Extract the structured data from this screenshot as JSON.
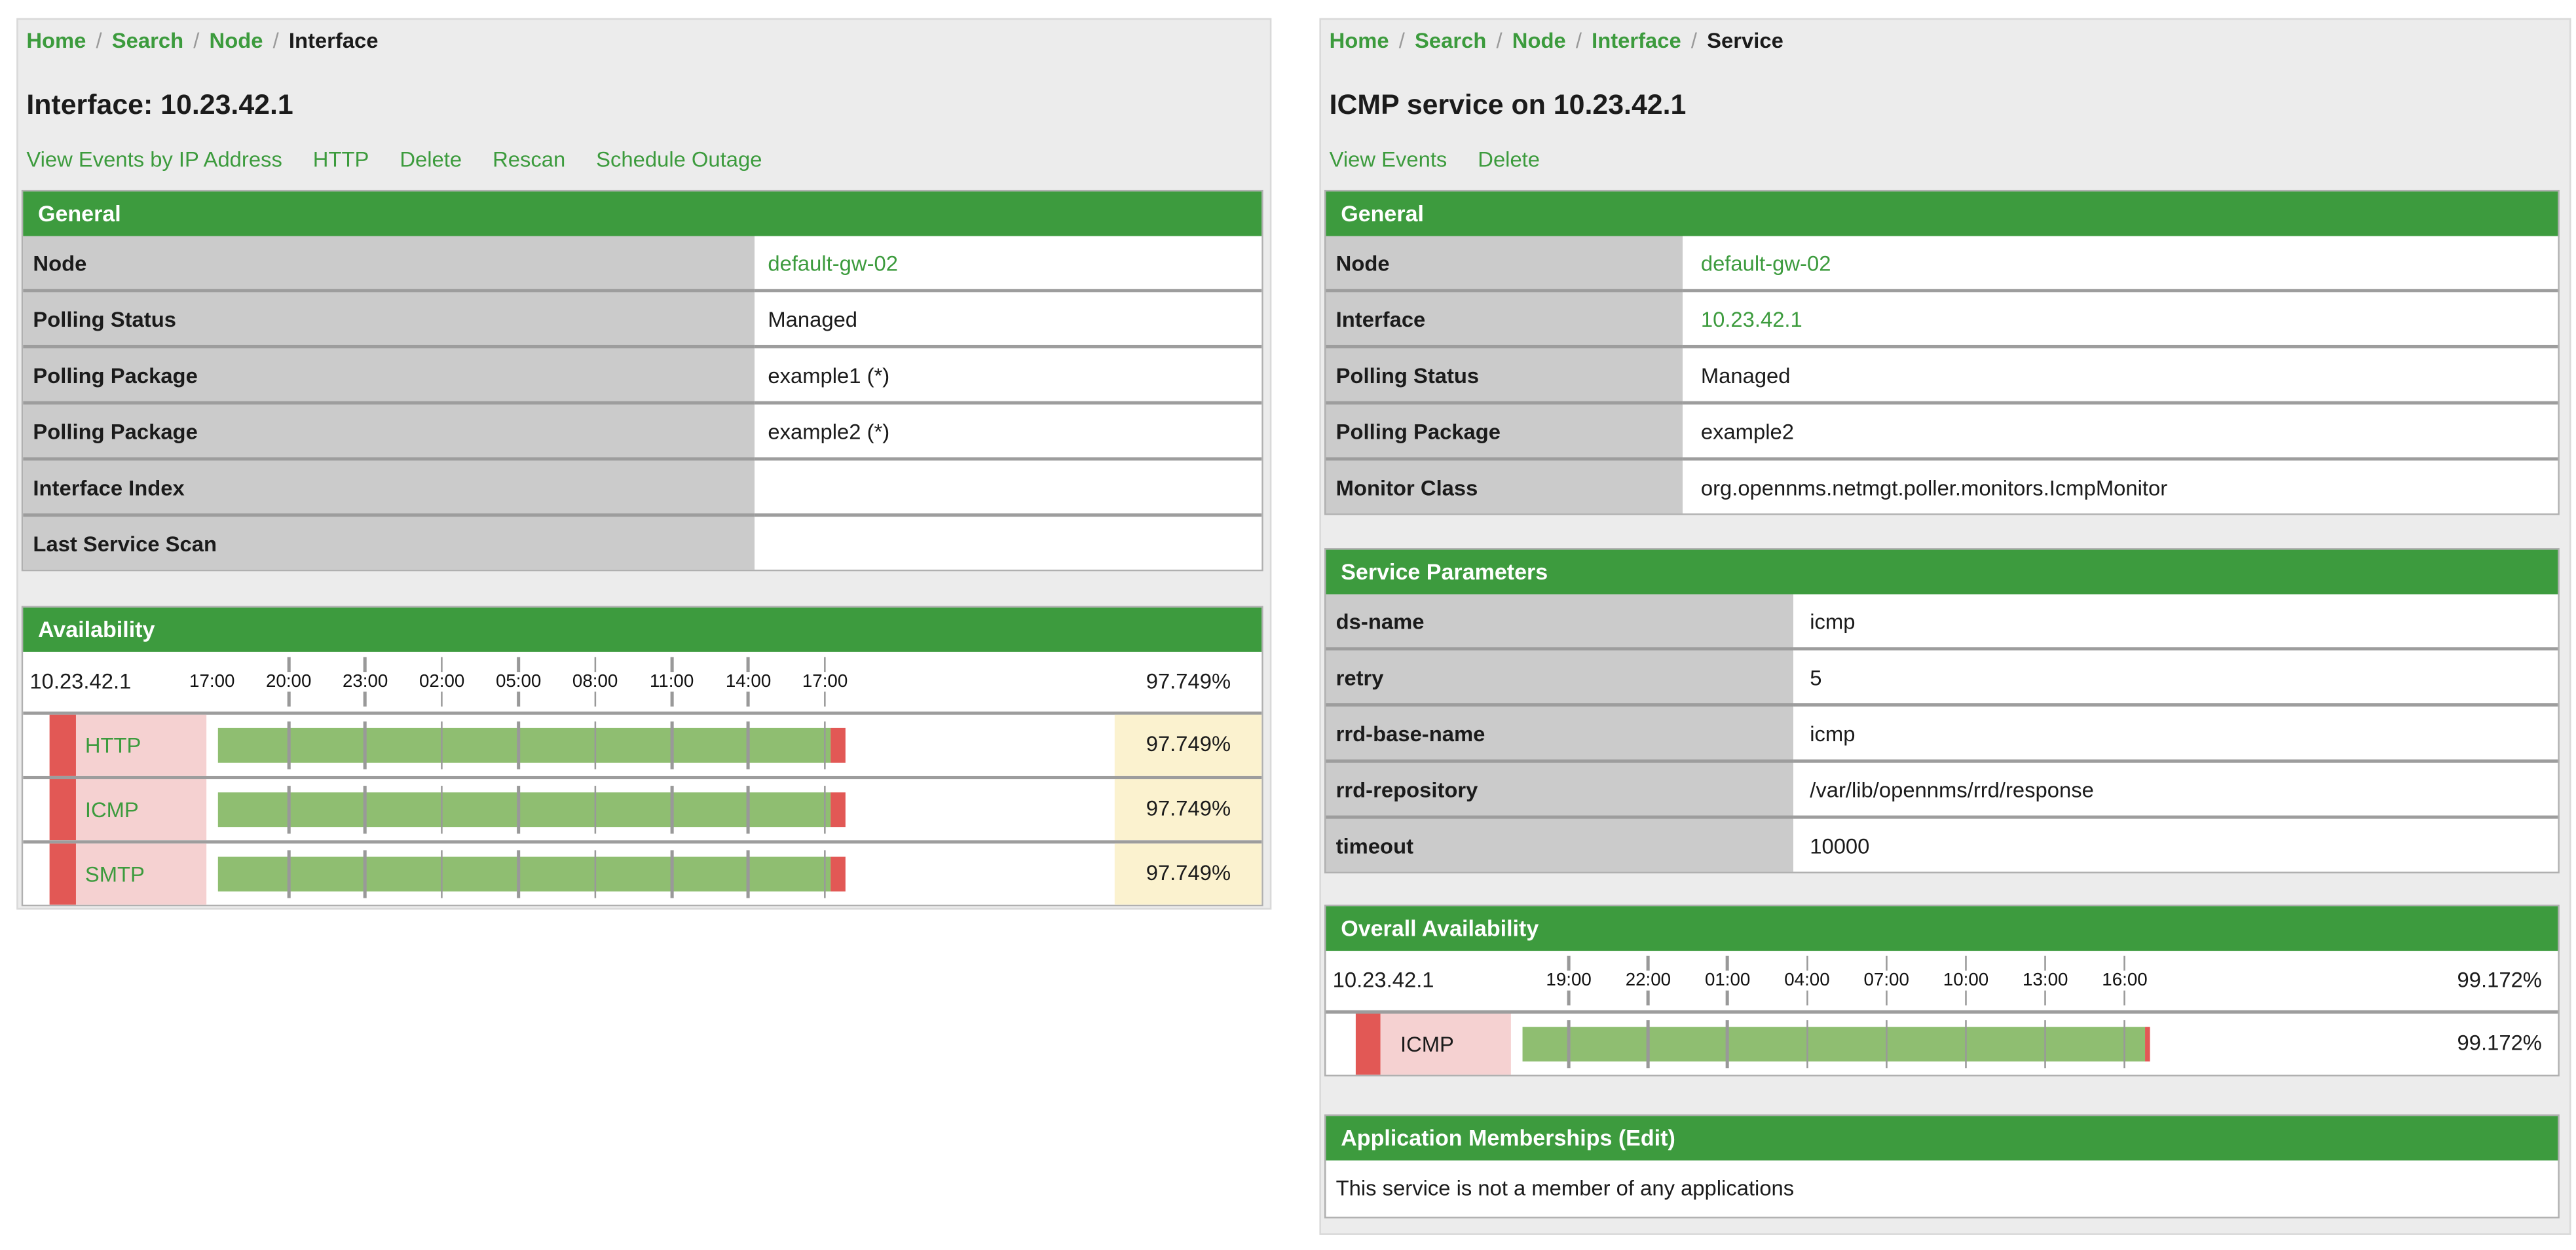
{
  "colors": {
    "header_green": "#3d9b3e",
    "link_green": "#3c9b3d",
    "label_gray": "#cbcbcb",
    "bar_green": "#8fbe71",
    "bar_red": "#e25855",
    "label_pink": "#f5d1d1",
    "value_yellow": "#fbf2cf",
    "tick_gray": "#999999",
    "card_gray": "#ececec"
  },
  "breadcrumb_sep": "/",
  "left_panel": {
    "breadcrumb": [
      "Home",
      "Search",
      "Node",
      "Interface"
    ],
    "title": "Interface: 10.23.42.1",
    "actions": [
      "View Events by IP Address",
      "HTTP",
      "Delete",
      "Rescan",
      "Schedule Outage"
    ],
    "general": {
      "header": "General",
      "rows": [
        {
          "label": "Node",
          "value": "default-gw-02"
        },
        {
          "label": "Polling Status",
          "value": "Managed"
        },
        {
          "label": "Polling Package",
          "value": "example1 (*)"
        },
        {
          "label": "Polling Package",
          "value": "example2 (*)"
        },
        {
          "label": "Interface Index",
          "value": ""
        },
        {
          "label": "Last Service Scan",
          "value": ""
        }
      ]
    },
    "availability": {
      "header": "Availability",
      "ip": "10.23.42.1",
      "overall": "97.749%",
      "axis_labels": [
        "17:00",
        "20:00",
        "23:00",
        "02:00",
        "05:00",
        "08:00",
        "11:00",
        "14:00",
        "17:00"
      ],
      "services": [
        {
          "name": "HTTP",
          "value": "97.749%",
          "pct": 97.749
        },
        {
          "name": "ICMP",
          "value": "97.749%",
          "pct": 97.749
        },
        {
          "name": "SMTP",
          "value": "97.749%",
          "pct": 97.749
        }
      ]
    }
  },
  "right_panel": {
    "breadcrumb": [
      "Home",
      "Search",
      "Node",
      "Interface",
      "Service"
    ],
    "title": "ICMP service on 10.23.42.1",
    "actions": [
      "View Events",
      "Delete"
    ],
    "general": {
      "header": "General",
      "rows": [
        {
          "label": "Node",
          "value": "default-gw-02"
        },
        {
          "label": "Interface",
          "value": "10.23.42.1"
        },
        {
          "label": "Polling Status",
          "value": "Managed"
        },
        {
          "label": "Polling Package",
          "value": "example2"
        },
        {
          "label": "Monitor Class",
          "value": "org.opennms.netmgt.poller.monitors.IcmpMonitor"
        }
      ]
    },
    "service_parameters": {
      "header": "Service Parameters",
      "rows": [
        {
          "label": "ds-name",
          "value": "icmp"
        },
        {
          "label": "retry",
          "value": "5"
        },
        {
          "label": "rrd-base-name",
          "value": "icmp"
        },
        {
          "label": "rrd-repository",
          "value": "/var/lib/opennms/rrd/response"
        },
        {
          "label": "timeout",
          "value": "10000"
        }
      ]
    },
    "overall_availability": {
      "header": "Overall Availability",
      "ip": "10.23.42.1",
      "overall": "99.172%",
      "axis_labels": [
        "19:00",
        "22:00",
        "01:00",
        "04:00",
        "07:00",
        "10:00",
        "13:00",
        "16:00"
      ],
      "services": [
        {
          "name": "ICMP",
          "value": "99.172%",
          "pct": 99.172
        }
      ]
    },
    "applications": {
      "header": "Application Memberships (Edit)",
      "body": "This service is not a member of any applications"
    }
  }
}
